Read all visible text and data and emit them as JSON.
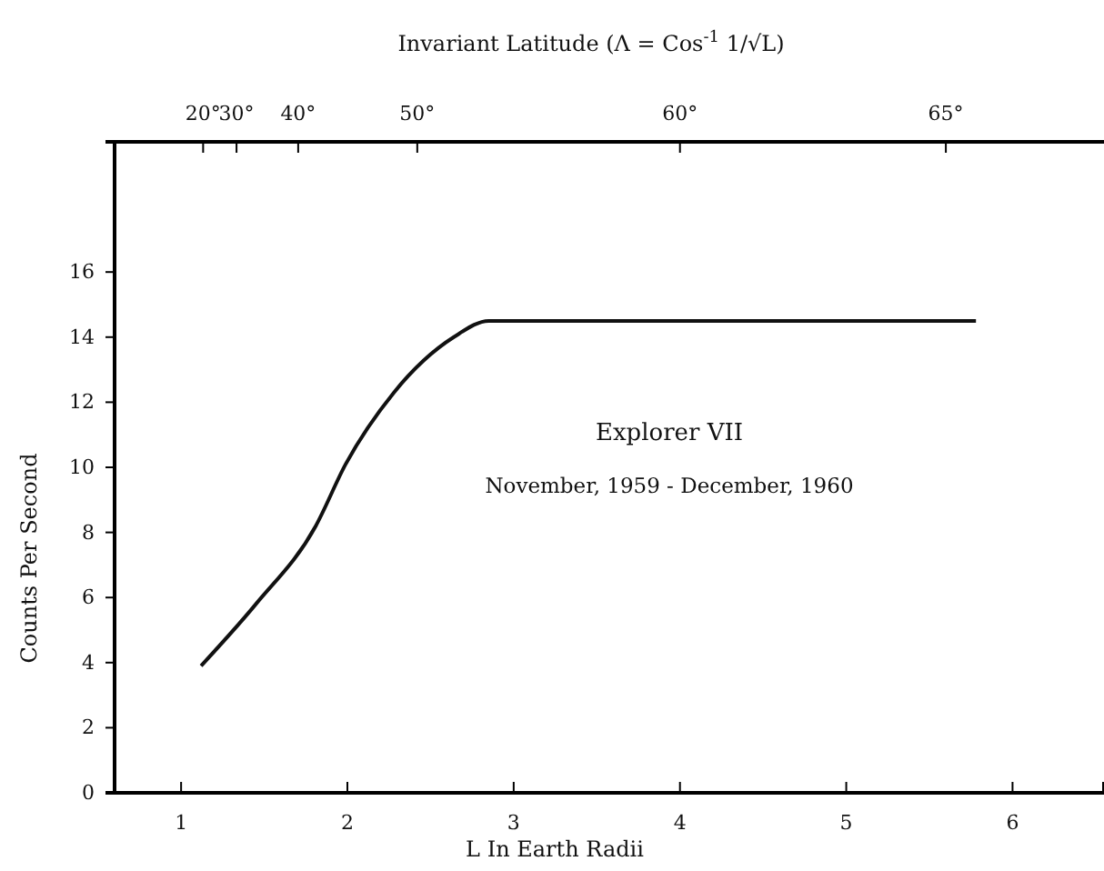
{
  "chart_data": {
    "type": "line",
    "xlabel": "L In Earth Radii",
    "ylabel": "Counts Per Second",
    "x": [
      1.12,
      1.45,
      1.81,
      1.99,
      2.28,
      2.64,
      2.85,
      3.5,
      4.5,
      5.78
    ],
    "series": [
      {
        "color": "#111111",
        "values": [
          3.9,
          5.8,
          8.2,
          10.1,
          12.3,
          14.0,
          14.5,
          14.5,
          14.5,
          14.5
        ]
      }
    ],
    "xlim": [
      0.6,
      6.55
    ],
    "xticks": [
      1,
      2,
      3,
      4,
      5,
      6
    ],
    "ylim": [
      0,
      20
    ],
    "yticks": [
      0,
      2,
      4,
      6,
      8,
      10,
      12,
      14,
      16
    ],
    "annotations": [
      "Explorer VII",
      "November, 1959 - December, 1960",
      "Invariant Latitude (Λ = Cos$^{-1}$ 1/√L)",
      "20°",
      "30°",
      "40°",
      "50°",
      "60°",
      "65°"
    ],
    "grid": false,
    "marker": "none",
    "line_style": "solid"
  }
}
